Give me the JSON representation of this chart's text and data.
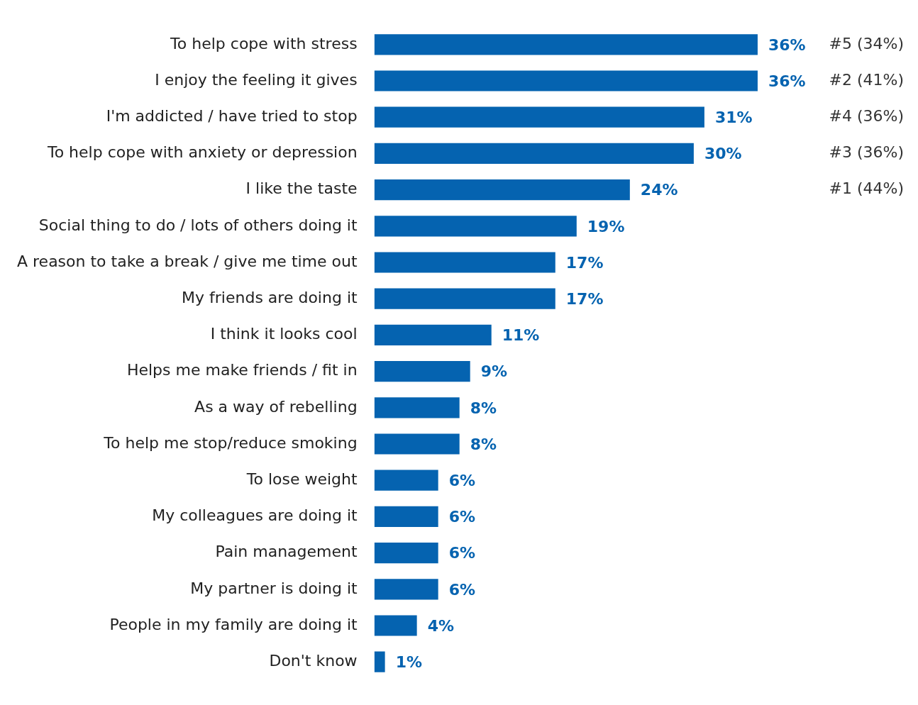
{
  "chart_data": {
    "type": "bar",
    "orientation": "horizontal",
    "categories": [
      "To help cope with stress",
      "I enjoy the feeling it gives",
      "I'm addicted / have tried to stop",
      "To help cope with anxiety or depression",
      "I like the taste",
      "Social thing to do / lots of others doing it",
      "A reason to take a break / give me time out",
      "My friends are doing it",
      "I think it looks cool",
      "Helps me make friends / fit in",
      "As a way of rebelling",
      "To help me stop/reduce smoking",
      "To lose weight",
      "My colleagues are doing it",
      "Pain management",
      "My partner is doing it",
      "People in my family are doing it",
      "Don't know"
    ],
    "values": [
      36,
      36,
      31,
      30,
      24,
      19,
      17,
      17,
      11,
      9,
      8,
      8,
      6,
      6,
      6,
      6,
      4,
      1
    ],
    "value_labels": [
      "36%",
      "36%",
      "31%",
      "30%",
      "24%",
      "19%",
      "17%",
      "17%",
      "11%",
      "9%",
      "8%",
      "8%",
      "6%",
      "6%",
      "6%",
      "6%",
      "4%",
      "1%"
    ],
    "color": "#0563b0",
    "annotations": [
      "#5 (34%)",
      "#2 (41%)",
      "#4 (36%)",
      "#3 (36%)",
      "#1 (44%)"
    ],
    "grid": false,
    "legend": false
  }
}
